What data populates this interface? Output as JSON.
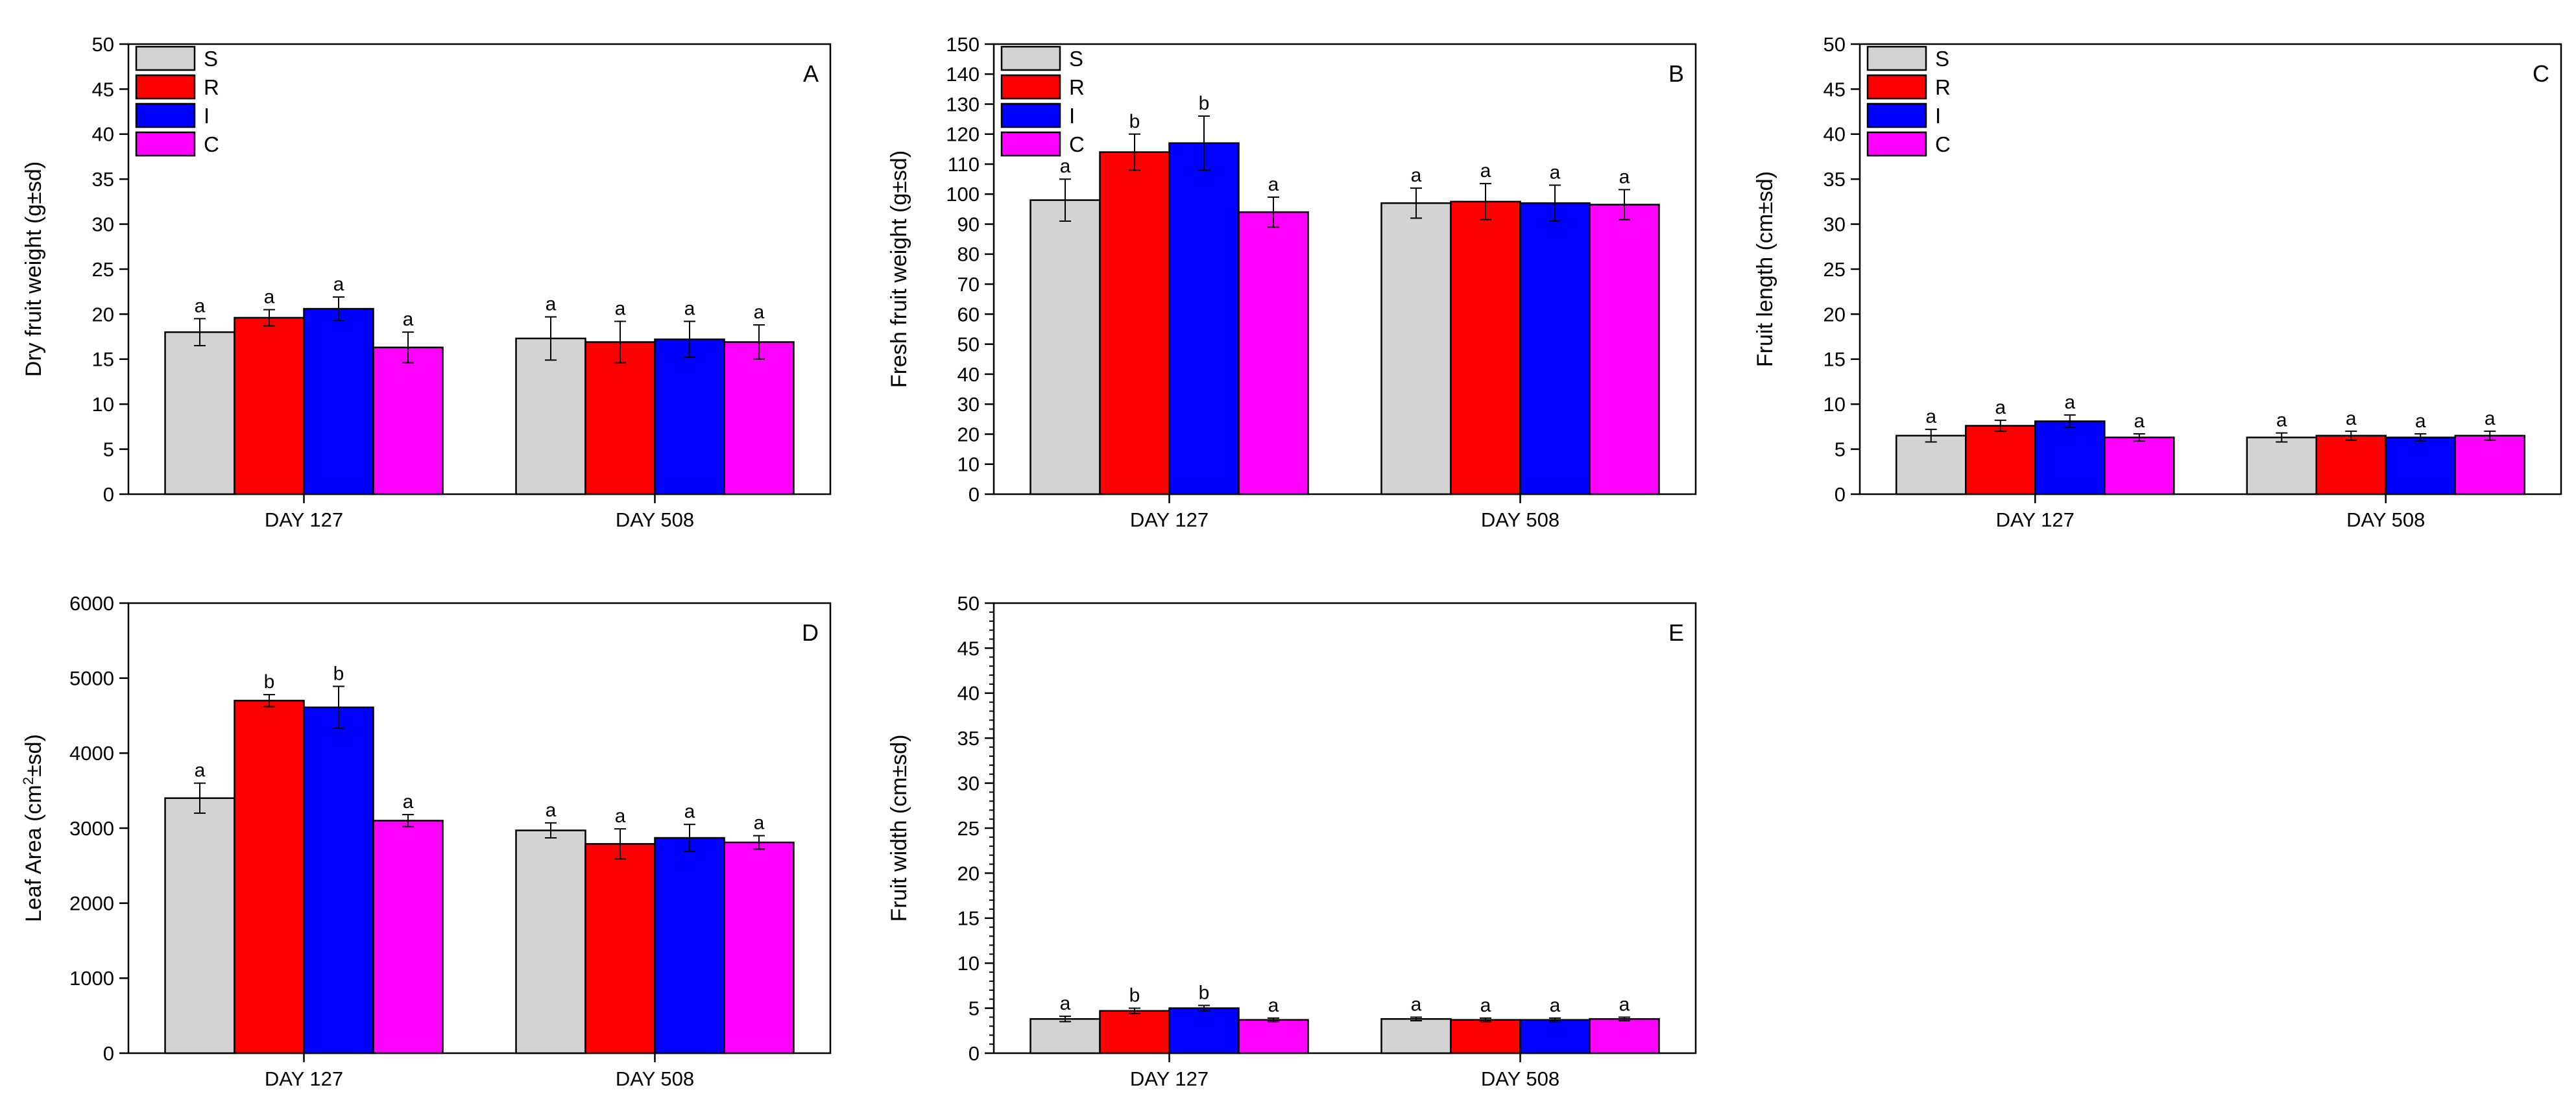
{
  "figure": {
    "legend_labels": [
      "S",
      "R",
      "I",
      "C"
    ],
    "group_labels": [
      "DAY 127",
      "DAY 508"
    ]
  },
  "series_colors": {
    "S": "#d3d3d3",
    "R": "#ff0000",
    "I": "#0000ff",
    "C": "#ff00ff"
  },
  "chart_data": [
    {
      "id": "A",
      "type": "bar",
      "panel_label": "A",
      "ylabel": "Dry fruit weight (g±sd)",
      "ylim": [
        0,
        50
      ],
      "yticks": [
        0,
        5,
        10,
        15,
        20,
        25,
        30,
        35,
        40,
        45,
        50
      ],
      "minor_ticks": false,
      "categories": [
        "DAY 127",
        "DAY 508"
      ],
      "legend": true,
      "series": [
        {
          "name": "S",
          "values": [
            18.0,
            17.3
          ],
          "errors": [
            1.5,
            2.4
          ],
          "letters": [
            "a",
            "a"
          ]
        },
        {
          "name": "R",
          "values": [
            19.6,
            16.9
          ],
          "errors": [
            0.9,
            2.3
          ],
          "letters": [
            "a",
            "a"
          ]
        },
        {
          "name": "I",
          "values": [
            20.6,
            17.2
          ],
          "errors": [
            1.3,
            2.0
          ],
          "letters": [
            "a",
            "a"
          ]
        },
        {
          "name": "C",
          "values": [
            16.3,
            16.9
          ],
          "errors": [
            1.7,
            1.9
          ],
          "letters": [
            "a",
            "a"
          ]
        }
      ]
    },
    {
      "id": "B",
      "type": "bar",
      "panel_label": "B",
      "ylabel": "Fresh fruit weight (g±sd)",
      "ylim": [
        0,
        150
      ],
      "yticks": [
        0,
        10,
        20,
        30,
        40,
        50,
        60,
        70,
        80,
        90,
        100,
        110,
        120,
        130,
        140,
        150
      ],
      "minor_ticks": false,
      "categories": [
        "DAY 127",
        "DAY 508"
      ],
      "legend": true,
      "series": [
        {
          "name": "S",
          "values": [
            98,
            97
          ],
          "errors": [
            7,
            5
          ],
          "letters": [
            "a",
            "a"
          ]
        },
        {
          "name": "R",
          "values": [
            114,
            97.5
          ],
          "errors": [
            6,
            6
          ],
          "letters": [
            "b",
            "a"
          ]
        },
        {
          "name": "I",
          "values": [
            117,
            97
          ],
          "errors": [
            9,
            6
          ],
          "letters": [
            "b",
            "a"
          ]
        },
        {
          "name": "C",
          "values": [
            94,
            96.5
          ],
          "errors": [
            5,
            5
          ],
          "letters": [
            "a",
            "a"
          ]
        }
      ]
    },
    {
      "id": "C",
      "type": "bar",
      "panel_label": "C",
      "ylabel": "Fruit length (cm±sd)",
      "ylim": [
        0,
        50
      ],
      "yticks": [
        0,
        5,
        10,
        15,
        20,
        25,
        30,
        35,
        40,
        45,
        50
      ],
      "minor_ticks": false,
      "categories": [
        "DAY 127",
        "DAY 508"
      ],
      "legend": true,
      "series": [
        {
          "name": "S",
          "values": [
            6.5,
            6.3
          ],
          "errors": [
            0.7,
            0.5
          ],
          "letters": [
            "a",
            "a"
          ]
        },
        {
          "name": "R",
          "values": [
            7.6,
            6.5
          ],
          "errors": [
            0.6,
            0.5
          ],
          "letters": [
            "a",
            "a"
          ]
        },
        {
          "name": "I",
          "values": [
            8.1,
            6.3
          ],
          "errors": [
            0.7,
            0.4
          ],
          "letters": [
            "a",
            "a"
          ]
        },
        {
          "name": "C",
          "values": [
            6.3,
            6.5
          ],
          "errors": [
            0.4,
            0.5
          ],
          "letters": [
            "a",
            "a"
          ]
        }
      ]
    },
    {
      "id": "D",
      "type": "bar",
      "panel_label": "D",
      "ylabel": "Leaf Area (cm²±sd)",
      "ylim": [
        0,
        6000
      ],
      "yticks": [
        0,
        1000,
        2000,
        3000,
        4000,
        5000,
        6000
      ],
      "minor_ticks": false,
      "categories": [
        "DAY 127",
        "DAY 508"
      ],
      "legend": false,
      "series": [
        {
          "name": "S",
          "values": [
            3400,
            2970
          ],
          "errors": [
            200,
            100
          ],
          "letters": [
            "a",
            "a"
          ]
        },
        {
          "name": "R",
          "values": [
            4700,
            2790
          ],
          "errors": [
            80,
            200
          ],
          "letters": [
            "b",
            "a"
          ]
        },
        {
          "name": "I",
          "values": [
            4610,
            2870
          ],
          "errors": [
            280,
            180
          ],
          "letters": [
            "b",
            "a"
          ]
        },
        {
          "name": "C",
          "values": [
            3100,
            2810
          ],
          "errors": [
            80,
            90
          ],
          "letters": [
            "a",
            "a"
          ]
        }
      ]
    },
    {
      "id": "E",
      "type": "bar",
      "panel_label": "E",
      "ylabel": "Fruit width (cm±sd)",
      "ylim": [
        0,
        50
      ],
      "yticks": [
        0,
        5,
        10,
        15,
        20,
        25,
        30,
        35,
        40,
        45,
        50
      ],
      "minor_ticks": true,
      "categories": [
        "DAY 127",
        "DAY 508"
      ],
      "legend": false,
      "series": [
        {
          "name": "S",
          "values": [
            3.8,
            3.8
          ],
          "errors": [
            0.3,
            0.2
          ],
          "letters": [
            "a",
            "a"
          ]
        },
        {
          "name": "R",
          "values": [
            4.7,
            3.7
          ],
          "errors": [
            0.3,
            0.2
          ],
          "letters": [
            "b",
            "a"
          ]
        },
        {
          "name": "I",
          "values": [
            5.0,
            3.7
          ],
          "errors": [
            0.3,
            0.2
          ],
          "letters": [
            "b",
            "a"
          ]
        },
        {
          "name": "C",
          "values": [
            3.7,
            3.8
          ],
          "errors": [
            0.2,
            0.2
          ],
          "letters": [
            "a",
            "a"
          ]
        }
      ]
    }
  ]
}
